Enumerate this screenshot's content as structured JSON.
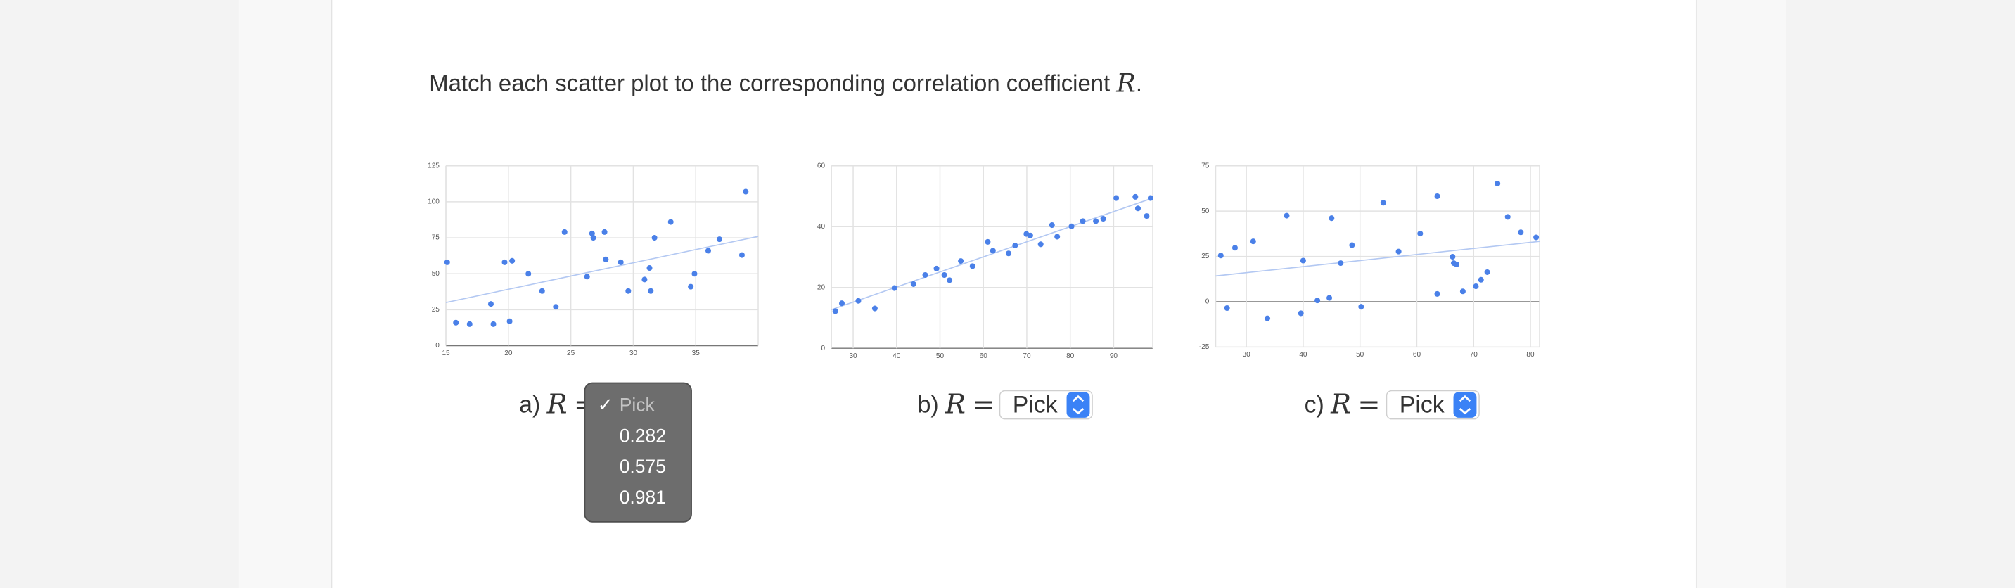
{
  "question": {
    "text": "Match each scatter plot to the corresponding correlation coefficient",
    "var": "R",
    "end": "."
  },
  "chart_data": [
    {
      "type": "scatter",
      "color": "#4a80e8",
      "trend_color": "#b3c8f2",
      "grid": true,
      "x": [
        15.1,
        15.8,
        16.9,
        18.6,
        18.8,
        19.7,
        20.1,
        20.3,
        21.6,
        22.7,
        23.8,
        24.5,
        26.3,
        26.7,
        26.8,
        27.7,
        27.8,
        29.0,
        29.6,
        30.9,
        31.3,
        31.4,
        31.7,
        33.0,
        34.6,
        34.9,
        36.0,
        36.9,
        38.7,
        39.0
      ],
      "values": [
        58,
        16,
        15,
        29,
        15,
        58,
        17,
        59,
        50,
        38,
        27,
        79,
        48,
        78,
        75,
        79,
        60,
        58,
        38,
        46,
        54,
        38,
        75,
        86,
        41,
        50,
        66,
        74,
        63,
        107
      ],
      "trendline": {
        "x": [
          15,
          40
        ],
        "values": [
          30,
          76
        ]
      },
      "xlim": [
        15,
        40
      ],
      "ylim": [
        0,
        125
      ],
      "xticks": [
        15,
        20,
        25,
        30,
        35
      ],
      "yticks": [
        0,
        25,
        50,
        75,
        100,
        125
      ]
    },
    {
      "type": "scatter",
      "color": "#4a80e8",
      "trend_color": "#b3c8f2",
      "grid": true,
      "x": [
        25.9,
        27.4,
        31.2,
        35.0,
        39.5,
        43.9,
        46.6,
        49.2,
        51.0,
        52.2,
        54.8,
        57.5,
        61.0,
        62.2,
        65.8,
        67.3,
        69.9,
        70.8,
        73.2,
        75.8,
        77.0,
        80.3,
        82.9,
        85.9,
        87.6,
        90.6,
        95.0,
        95.6,
        97.6,
        98.5
      ],
      "values": [
        12.2,
        14.8,
        15.6,
        13.1,
        19.8,
        21.1,
        24.1,
        26.2,
        24.1,
        22.4,
        28.7,
        27.0,
        35.0,
        32.1,
        31.2,
        33.8,
        37.6,
        37.1,
        34.2,
        40.5,
        36.7,
        40.1,
        41.8,
        41.8,
        42.6,
        49.4,
        49.8,
        46.0,
        43.5,
        49.4
      ],
      "trendline": {
        "x": [
          25,
          99
        ],
        "values": [
          12.7,
          49.4
        ]
      },
      "xlim": [
        25,
        99
      ],
      "ylim": [
        0,
        60
      ],
      "xticks": [
        30,
        40,
        50,
        60,
        70,
        80,
        90
      ],
      "yticks": [
        0,
        20,
        40,
        60
      ]
    },
    {
      "type": "scatter",
      "color": "#4a80e8",
      "trend_color": "#b3c8f2",
      "grid": true,
      "x": [
        25.5,
        26.6,
        28.0,
        31.2,
        33.7,
        37.1,
        39.6,
        40.0,
        42.5,
        44.6,
        45.0,
        46.6,
        48.6,
        50.2,
        54.1,
        56.8,
        60.6,
        63.6,
        63.6,
        66.3,
        66.5,
        67.0,
        68.1,
        70.4,
        71.3,
        72.4,
        74.2,
        76.0,
        78.3,
        81.0
      ],
      "values": [
        25.5,
        -3.5,
        29.8,
        33.3,
        -9.2,
        47.5,
        -6.4,
        22.7,
        0.7,
        2.1,
        46.1,
        21.3,
        31.2,
        -2.8,
        54.6,
        27.7,
        37.6,
        58.2,
        4.3,
        24.8,
        21.3,
        20.6,
        5.7,
        8.5,
        12.1,
        16.3,
        65.2,
        46.8,
        38.3,
        35.5
      ],
      "trendline": {
        "x": [
          24.6,
          81.6
        ],
        "values": [
          14.2,
          33.3
        ]
      },
      "xlim": [
        24.6,
        81.6
      ],
      "ylim": [
        -25,
        75
      ],
      "xticks": [
        30,
        40,
        50,
        60,
        70,
        80
      ],
      "yticks": [
        -25,
        0,
        25,
        50,
        75
      ]
    }
  ],
  "answers": [
    {
      "label": "a)",
      "var": "R",
      "eq": "=",
      "selected": "Pick"
    },
    {
      "label": "b)",
      "var": "R",
      "eq": "=",
      "selected": "Pick"
    },
    {
      "label": "c)",
      "var": "R",
      "eq": "=",
      "selected": "Pick"
    }
  ],
  "dropdown": {
    "check": "✓",
    "options": [
      "Pick",
      "0.282",
      "0.575",
      "0.981"
    ]
  }
}
